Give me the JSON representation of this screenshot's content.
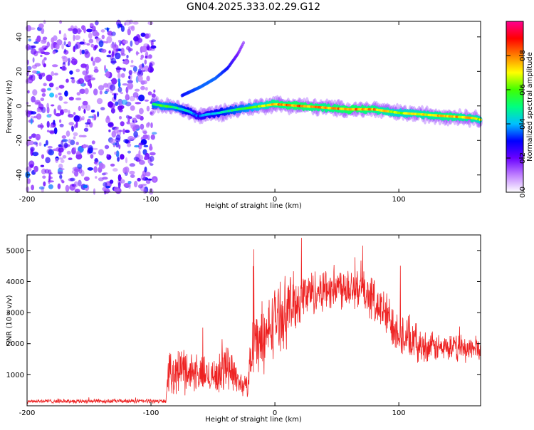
{
  "title": "GN04.2025.333.02.29.G12",
  "chart_data": [
    {
      "type": "heatmap",
      "name": "spectrogram",
      "xlabel": "Height of straight line (km)",
      "ylabel": "Frequency (Hz)",
      "xlim": [
        -200,
        166
      ],
      "ylim": [
        -50,
        49
      ],
      "x_ticks": [
        -200,
        -100,
        0,
        100
      ],
      "y_ticks": [
        40,
        20,
        0,
        -20,
        -40
      ],
      "colorbar": {
        "label": "Normalized spectral amplitude",
        "range": [
          0,
          1
        ],
        "ticks": [
          0.0,
          0.2,
          0.4,
          0.6,
          0.8
        ],
        "colors": [
          "#ffffff",
          "#c080ff",
          "#6a00ff",
          "#0000ff",
          "#00c0ff",
          "#00ff80",
          "#40ff00",
          "#ffff00",
          "#ff8000",
          "#ff0000",
          "#ff0090"
        ]
      },
      "noise_region": {
        "x": [
          -200,
          -97
        ],
        "freq": [
          -50,
          49
        ],
        "amplitude": [
          0.1,
          0.3
        ]
      },
      "ridge": [
        {
          "x": -98,
          "freq": 1,
          "amp": 0.55
        },
        {
          "x": -90,
          "freq": 0,
          "amp": 0.6
        },
        {
          "x": -80,
          "freq": -1,
          "amp": 0.55
        },
        {
          "x": -70,
          "freq": -3,
          "amp": 0.45
        },
        {
          "x": -62,
          "freq": -6,
          "amp": 0.35
        },
        {
          "x": -55,
          "freq": -5,
          "amp": 0.4
        },
        {
          "x": -45,
          "freq": -4,
          "amp": 0.45
        },
        {
          "x": -38,
          "freq": -3,
          "amp": 0.5
        },
        {
          "x": -30,
          "freq": -2,
          "amp": 0.55
        },
        {
          "x": -20,
          "freq": -1,
          "amp": 0.6
        },
        {
          "x": -10,
          "freq": 0,
          "amp": 0.7
        },
        {
          "x": 0,
          "freq": 1,
          "amp": 0.8
        },
        {
          "x": 20,
          "freq": 0,
          "amp": 0.85
        },
        {
          "x": 40,
          "freq": -1,
          "amp": 0.8
        },
        {
          "x": 60,
          "freq": -2,
          "amp": 0.85
        },
        {
          "x": 80,
          "freq": -2,
          "amp": 0.8
        },
        {
          "x": 100,
          "freq": -4,
          "amp": 0.7
        },
        {
          "x": 120,
          "freq": -5,
          "amp": 0.75
        },
        {
          "x": 140,
          "freq": -6,
          "amp": 0.8
        },
        {
          "x": 160,
          "freq": -7,
          "amp": 0.75
        },
        {
          "x": 166,
          "freq": -8,
          "amp": 0.7
        }
      ],
      "branch": [
        {
          "x": -75,
          "freq": 6,
          "amp": 0.3
        },
        {
          "x": -60,
          "freq": 11,
          "amp": 0.35
        },
        {
          "x": -48,
          "freq": 16,
          "amp": 0.35
        },
        {
          "x": -38,
          "freq": 22,
          "amp": 0.3
        },
        {
          "x": -30,
          "freq": 30,
          "amp": 0.2
        },
        {
          "x": -25,
          "freq": 37,
          "amp": 0.15
        }
      ]
    },
    {
      "type": "line",
      "name": "snr",
      "xlabel": "Height of straight line (km)",
      "ylabel": "SNR (10 * v/v)",
      "xlim": [
        -200,
        166
      ],
      "ylim": [
        0,
        5500
      ],
      "x_ticks": [
        -200,
        -100,
        0,
        100
      ],
      "y_ticks": [
        1000,
        2000,
        3000,
        4000,
        5000
      ],
      "color": "#ee2222",
      "envelope": [
        {
          "x": -200,
          "mean": 150,
          "spread": 80
        },
        {
          "x": -88,
          "mean": 150,
          "spread": 80
        },
        {
          "x": -86,
          "mean": 1000,
          "spread": 700
        },
        {
          "x": -75,
          "mean": 1200,
          "spread": 900
        },
        {
          "x": -60,
          "mean": 1000,
          "spread": 700
        },
        {
          "x": -45,
          "mean": 1000,
          "spread": 700
        },
        {
          "x": -38,
          "mean": 1400,
          "spread": 1000
        },
        {
          "x": -30,
          "mean": 800,
          "spread": 500
        },
        {
          "x": -22,
          "mean": 600,
          "spread": 400
        },
        {
          "x": -18,
          "mean": 2200,
          "spread": 1400
        },
        {
          "x": -10,
          "mean": 2000,
          "spread": 1200
        },
        {
          "x": 0,
          "mean": 2800,
          "spread": 1300
        },
        {
          "x": 10,
          "mean": 3100,
          "spread": 1300
        },
        {
          "x": 25,
          "mean": 3600,
          "spread": 900
        },
        {
          "x": 45,
          "mean": 3800,
          "spread": 800
        },
        {
          "x": 60,
          "mean": 3900,
          "spread": 900
        },
        {
          "x": 75,
          "mean": 3600,
          "spread": 800
        },
        {
          "x": 90,
          "mean": 2900,
          "spread": 900
        },
        {
          "x": 105,
          "mean": 2200,
          "spread": 900
        },
        {
          "x": 120,
          "mean": 1900,
          "spread": 600
        },
        {
          "x": 140,
          "mean": 1850,
          "spread": 500
        },
        {
          "x": 166,
          "mean": 1850,
          "spread": 500
        }
      ]
    }
  ]
}
